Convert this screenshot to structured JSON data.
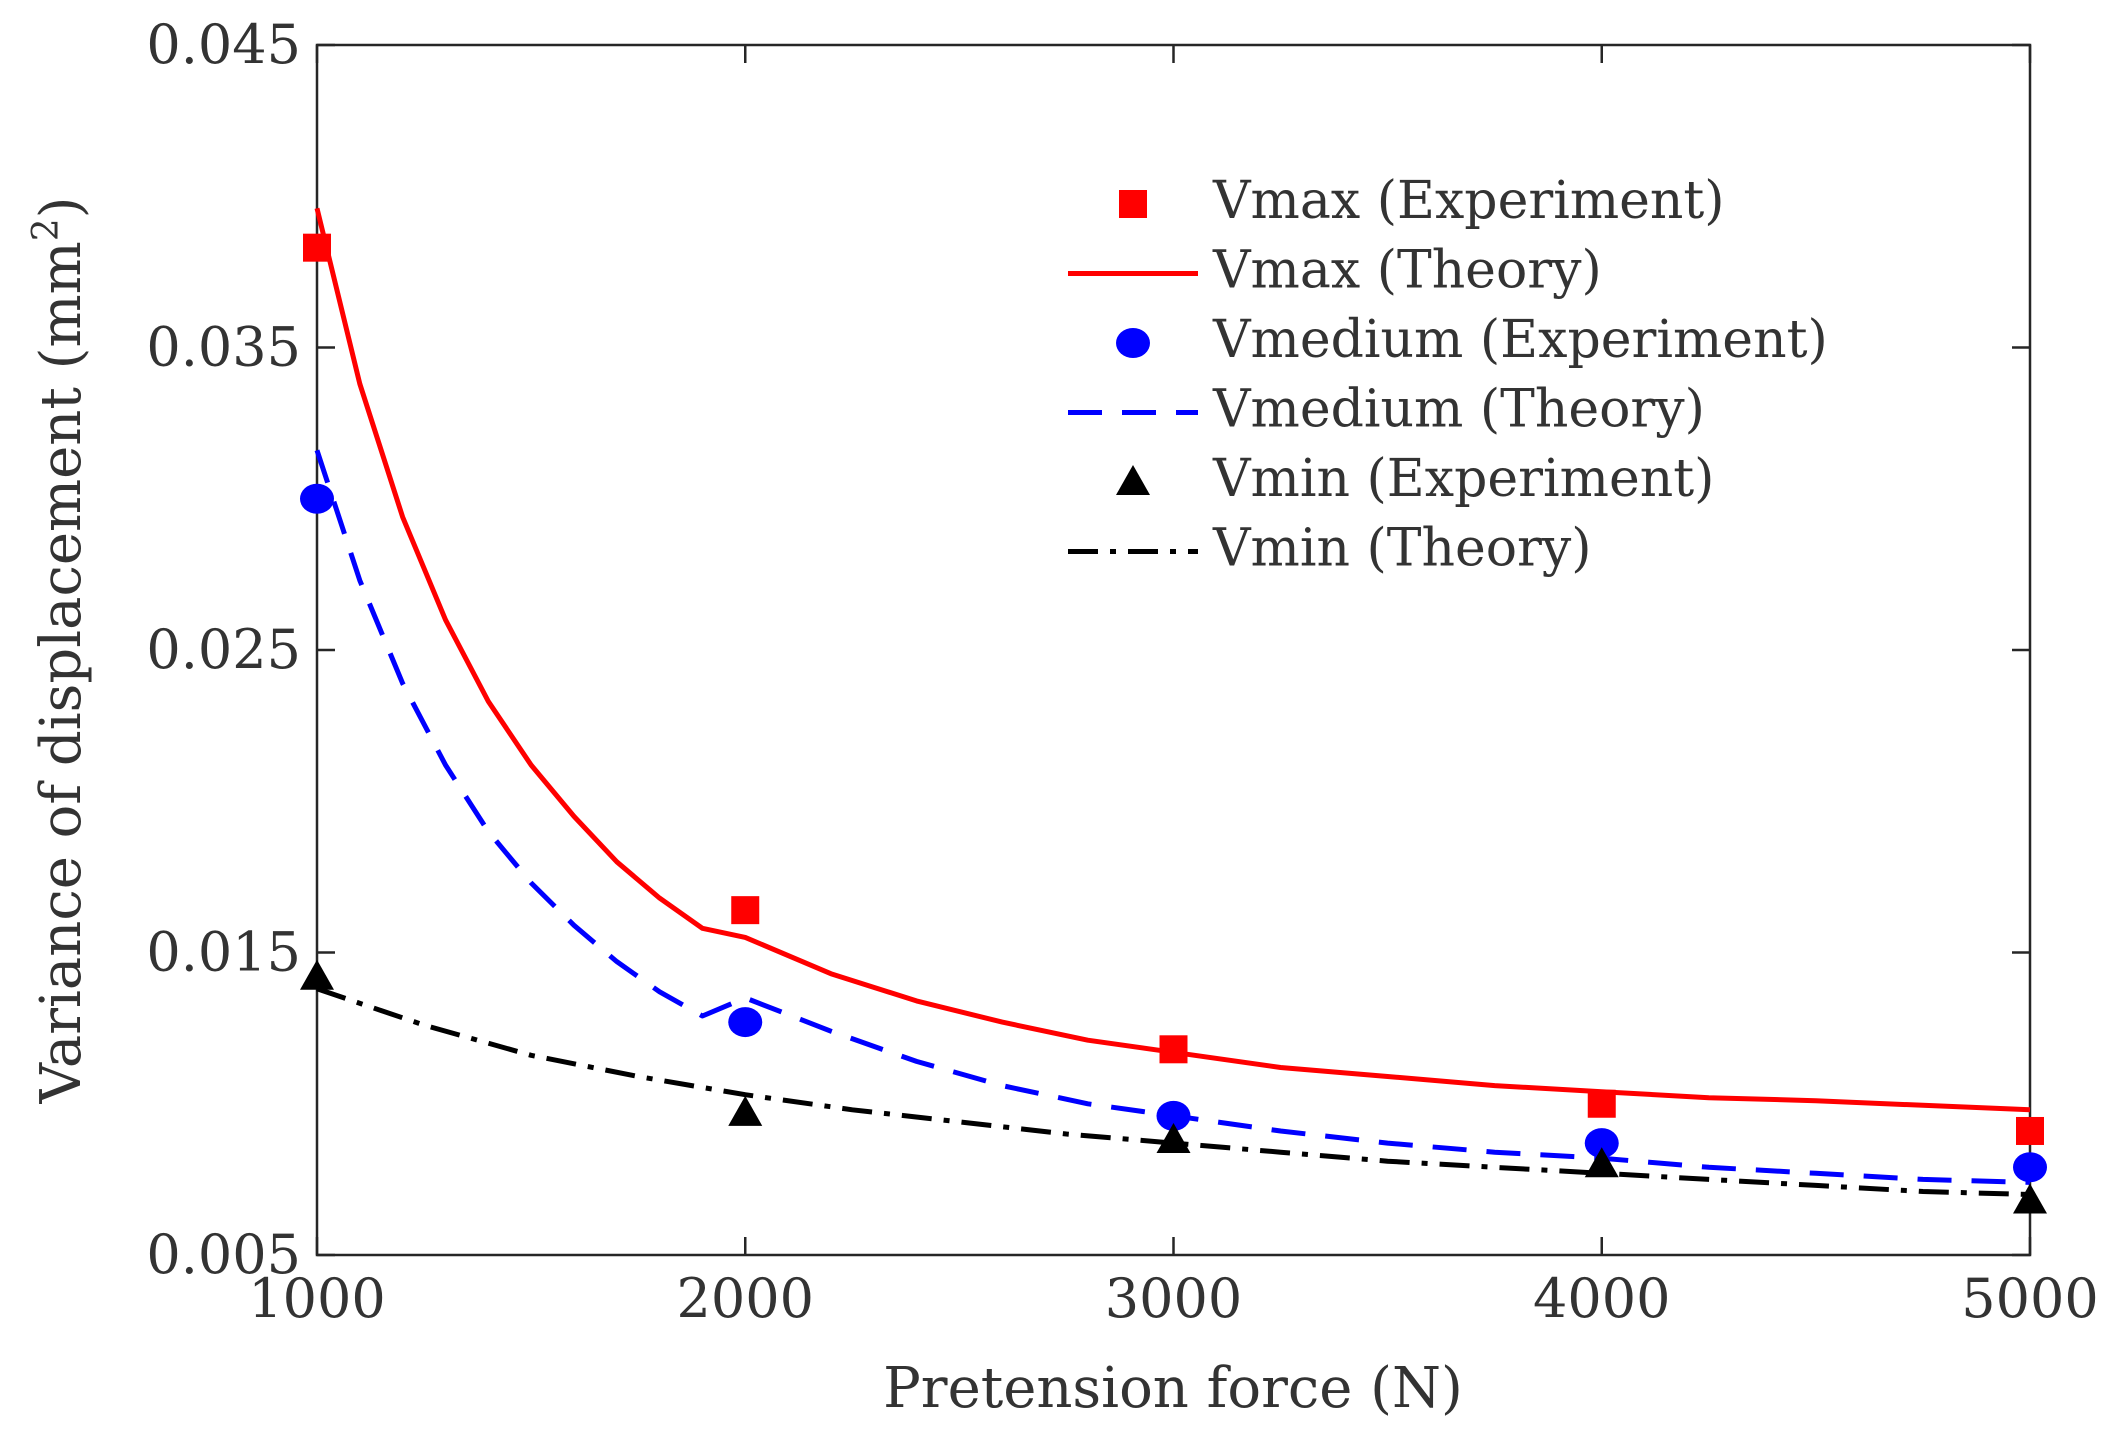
{
  "chart_data": {
    "type": "line",
    "xlabel": "Pretension force (N)",
    "ylabel": "Variance of displacement (mm",
    "ylabel_superscript": "2",
    "ylabel_suffix": ")",
    "xlim": [
      1000,
      5000
    ],
    "ylim": [
      0.005,
      0.045
    ],
    "x_ticks": [
      1000,
      2000,
      3000,
      4000,
      5000
    ],
    "x_tick_labels": [
      "1000",
      "2000",
      "3000",
      "4000",
      "5000"
    ],
    "y_ticks": [
      0.005,
      0.015,
      0.025,
      0.035,
      0.045
    ],
    "y_tick_labels": [
      "0.005",
      "0.015",
      "0.025",
      "0.035",
      "0.045"
    ],
    "grid": false,
    "legend_position": "top-right",
    "series": [
      {
        "name": "Vmax (Experiment)",
        "kind": "marker",
        "marker": "square",
        "color": "#ff0000",
        "x": [
          1000,
          2000,
          3000,
          4000,
          5000
        ],
        "y": [
          0.0383,
          0.0164,
          0.0118,
          0.01,
          0.0091
        ]
      },
      {
        "name": "Vmax (Theory)",
        "kind": "line",
        "dash": "solid",
        "color": "#ff0000",
        "x": [
          1000,
          1100,
          1200,
          1300,
          1400,
          1500,
          1600,
          1700,
          1800,
          1900,
          2000,
          2200,
          2400,
          2600,
          2800,
          3000,
          3250,
          3500,
          3750,
          4000,
          4250,
          4500,
          4750,
          5000
        ],
        "y": [
          0.0396,
          0.0338,
          0.0294,
          0.026,
          0.0233,
          0.0212,
          0.0195,
          0.018,
          0.0168,
          0.0158,
          0.0155,
          0.0143,
          0.0134,
          0.0127,
          0.0121,
          0.0117,
          0.0112,
          0.0109,
          0.0106,
          0.0104,
          0.0102,
          0.0101,
          0.00995,
          0.0098
        ]
      },
      {
        "name": "Vmedium (Experiment)",
        "kind": "marker",
        "marker": "circle",
        "color": "#0000ff",
        "x": [
          1000,
          2000,
          3000,
          4000,
          5000
        ],
        "y": [
          0.03,
          0.0127,
          0.0096,
          0.0087,
          0.0079
        ]
      },
      {
        "name": "Vmedium (Theory)",
        "kind": "line",
        "dash": "dashed",
        "color": "#0000ff",
        "x": [
          1000,
          1100,
          1200,
          1300,
          1400,
          1500,
          1600,
          1700,
          1800,
          1900,
          2000,
          2200,
          2400,
          2600,
          2800,
          3000,
          3250,
          3500,
          3750,
          4000,
          4250,
          4500,
          4750,
          5000
        ],
        "y": [
          0.0316,
          0.0273,
          0.0239,
          0.0212,
          0.019,
          0.0173,
          0.0159,
          0.0147,
          0.0137,
          0.0129,
          0.0135,
          0.0124,
          0.0114,
          0.0106,
          0.01,
          0.0096,
          0.0091,
          0.0087,
          0.0084,
          0.0082,
          0.0079,
          0.0077,
          0.0075,
          0.0074
        ]
      },
      {
        "name": "Vmin (Experiment)",
        "kind": "marker",
        "marker": "triangle",
        "color": "#000000",
        "x": [
          1000,
          2000,
          3000,
          4000,
          5000
        ],
        "y": [
          0.0142,
          0.0097,
          0.0088,
          0.008,
          0.0068
        ]
      },
      {
        "name": "Vmin (Theory)",
        "kind": "line",
        "dash": "dashdot",
        "color": "#000000",
        "x": [
          1000,
          1250,
          1500,
          1750,
          2000,
          2250,
          2500,
          2750,
          3000,
          3250,
          3500,
          3750,
          4000,
          4250,
          4500,
          4750,
          5000
        ],
        "y": [
          0.0138,
          0.0126,
          0.0116,
          0.0109,
          0.0103,
          0.0098,
          0.0094,
          0.009,
          0.0087,
          0.0084,
          0.0081,
          0.0079,
          0.0077,
          0.0075,
          0.0073,
          0.0071,
          0.007
        ]
      }
    ]
  }
}
